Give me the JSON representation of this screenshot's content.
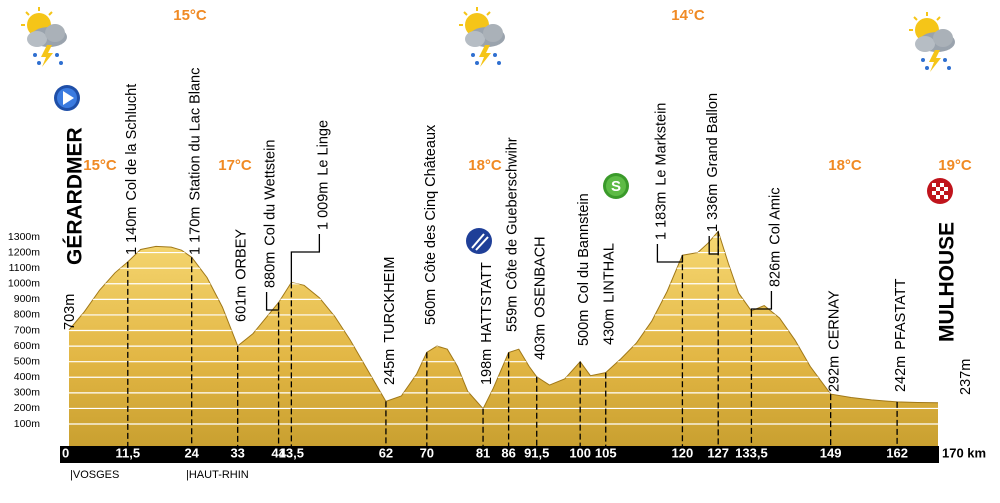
{
  "chart_data": {
    "type": "area",
    "color": "#e8bd45",
    "x": [
      0,
      3,
      6,
      9,
      11.5,
      14,
      17,
      20,
      22,
      24,
      27,
      30,
      33,
      36,
      38,
      41,
      43.5,
      46,
      49,
      52,
      55,
      58,
      62,
      65,
      68,
      70,
      72,
      74,
      76,
      78,
      81,
      83,
      86,
      88,
      90,
      91.5,
      94,
      97,
      100,
      102,
      105,
      108,
      111,
      114,
      117,
      120,
      123,
      125,
      127,
      129,
      131,
      133.5,
      136,
      139,
      142,
      145,
      149,
      153,
      157,
      162,
      166,
      170
    ],
    "values": [
      703,
      820,
      960,
      1070,
      1140,
      1220,
      1240,
      1235,
      1215,
      1170,
      1040,
      850,
      601,
      680,
      760,
      880,
      1009,
      990,
      910,
      790,
      640,
      470,
      245,
      280,
      420,
      560,
      600,
      580,
      470,
      310,
      198,
      330,
      559,
      580,
      470,
      403,
      350,
      390,
      500,
      410,
      430,
      520,
      620,
      760,
      950,
      1183,
      1200,
      1260,
      1336,
      1130,
      940,
      826,
      860,
      780,
      640,
      470,
      292,
      270,
      255,
      242,
      238,
      237
    ],
    "ylim": [
      0,
      1300
    ],
    "yticks": [
      {
        "value": 100,
        "label": "100m"
      },
      {
        "value": 200,
        "label": "200m"
      },
      {
        "value": 300,
        "label": "300m"
      },
      {
        "value": 400,
        "label": "400m"
      },
      {
        "value": 500,
        "label": "500m"
      },
      {
        "value": 600,
        "label": "600m"
      },
      {
        "value": 700,
        "label": "700m"
      },
      {
        "value": 800,
        "label": "800m"
      },
      {
        "value": 900,
        "label": "900m"
      },
      {
        "value": 1000,
        "label": "1000m"
      },
      {
        "value": 1100,
        "label": "1100m"
      },
      {
        "value": 1200,
        "label": "1200m"
      },
      {
        "value": 1300,
        "label": "1300m"
      }
    ],
    "xlim": [
      0,
      170
    ],
    "xticks": [
      0,
      {
        "value": 11.5,
        "label": "11,5"
      },
      24,
      33,
      41,
      {
        "value": 43.5,
        "label": "43,5"
      },
      62,
      70,
      81,
      86,
      {
        "value": 91.5,
        "label": "91,5"
      },
      100,
      105,
      120,
      127,
      {
        "value": 133.5,
        "label": "133,5"
      },
      149,
      162,
      {
        "value": 170,
        "label": "170 km"
      }
    ],
    "grid": true,
    "waypoints": [
      {
        "altitude": "703m",
        "name": "GÉRARDMER"
      },
      {
        "altitude": "1 140m",
        "name": "Col de la Schlucht"
      },
      {
        "altitude": "1 170m",
        "name": "Station du Lac Blanc"
      },
      {
        "altitude": "601m",
        "name": "ORBEY"
      },
      {
        "altitude": "880m",
        "name": "Col du Wettstein"
      },
      {
        "altitude": "1 009m",
        "name": "Le Linge"
      },
      {
        "altitude": "245m",
        "name": "TURCKHEIM"
      },
      {
        "altitude": "560m",
        "name": "Côte des Cinq Châteaux"
      },
      {
        "altitude": "198m",
        "name": "HATTSTATT"
      },
      {
        "altitude": "559m",
        "name": "Côte de Gueberschwihr"
      },
      {
        "altitude": "403m",
        "name": "OSENBACH"
      },
      {
        "altitude": "500m",
        "name": "Col du Bannstein"
      },
      {
        "altitude": "430m",
        "name": "LINTHAL"
      },
      {
        "altitude": "1 183m",
        "name": "Le Markstein"
      },
      {
        "altitude": "1 336m",
        "name": "Grand Ballon"
      },
      {
        "altitude": "826m",
        "name": "Col Amic"
      },
      {
        "altitude": "292m",
        "name": "CERNAY"
      },
      {
        "altitude": "242m",
        "name": "PFASTATT"
      },
      {
        "altitude": "237m",
        "name": "MULHOUSE"
      }
    ],
    "temperatures_top": [
      "15°C",
      "14°C"
    ],
    "temperatures": [
      "15°C",
      "17°C",
      "18°C",
      "18°C",
      "19°C"
    ],
    "regions": [
      "|VOSGES",
      "|HAUT-RHIN"
    ]
  }
}
